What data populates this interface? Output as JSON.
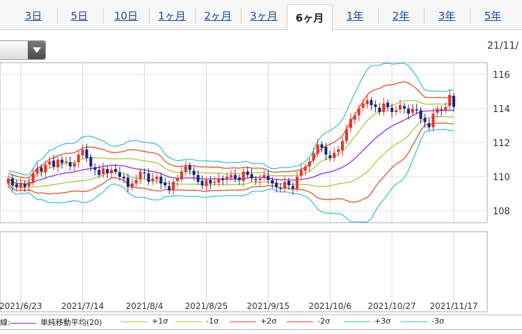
{
  "tabs": [
    {
      "label": "3日",
      "active": false
    },
    {
      "label": "5日",
      "active": false
    },
    {
      "label": "10日",
      "active": false
    },
    {
      "label": "1ヶ月",
      "active": false
    },
    {
      "label": "2ヶ月",
      "active": false
    },
    {
      "label": "3ヶ月",
      "active": false
    },
    {
      "label": "6ヶ月",
      "active": true
    },
    {
      "label": "1年",
      "active": false
    },
    {
      "label": "2年",
      "active": false
    },
    {
      "label": "3年",
      "active": false
    },
    {
      "label": "5年",
      "active": false
    }
  ],
  "header": {
    "date": "21/11/"
  },
  "legend": {
    "prefix": "線:",
    "items": [
      {
        "label": "単純移動平均(20)",
        "color": "#8b2be2"
      },
      {
        "label": "+1σ",
        "color": "#a6c83a"
      },
      {
        "label": "-1σ",
        "color": "#a6c83a"
      },
      {
        "label": "+2σ",
        "color": "#e0502a"
      },
      {
        "label": "-2σ",
        "color": "#e0502a"
      },
      {
        "label": "+3σ",
        "color": "#3cc0d8"
      },
      {
        "label": "-3σ",
        "color": "#3cc0d8"
      }
    ]
  },
  "chart_data": {
    "type": "candlestick",
    "indicator": "Bollinger Bands (SMA 20, ±1σ, ±2σ, ±3σ)",
    "x_labels": [
      "2021/6/23",
      "2021/7/14",
      "2021/8/4",
      "2021/8/25",
      "2021/9/15",
      "2021/10/6",
      "2021/10/27",
      "2021/11/17"
    ],
    "ylim": [
      107.3,
      116.7
    ],
    "y_ticks": [
      108,
      110,
      112,
      114,
      116
    ],
    "grid": true,
    "colors": {
      "up": "#e8322b",
      "down": "#1a237e",
      "sma": "#8b2be2",
      "sigma1": "#a6c83a",
      "sigma2": "#e0502a",
      "sigma3": "#3cc0d8"
    },
    "closes": [
      109.9,
      109.5,
      109.4,
      109.6,
      109.4,
      109.7,
      110.2,
      110.5,
      110.3,
      110.7,
      110.9,
      110.6,
      111.0,
      110.8,
      110.9,
      110.6,
      110.8,
      111.3,
      111.6,
      111.1,
      110.6,
      110.4,
      110.1,
      110.5,
      110.2,
      110.4,
      110.3,
      110.0,
      109.9,
      109.4,
      109.6,
      109.8,
      110.3,
      110.2,
      109.7,
      109.9,
      110.0,
      109.6,
      109.5,
      109.2,
      109.7,
      109.9,
      110.3,
      110.6,
      110.4,
      110.1,
      109.7,
      109.5,
      109.8,
      109.6,
      109.7,
      109.9,
      109.8,
      110.0,
      110.1,
      109.9,
      109.8,
      110.3,
      110.1,
      109.9,
      109.8,
      109.9,
      110.1,
      109.8,
      109.6,
      109.4,
      109.3,
      109.7,
      109.5,
      109.3,
      110.0,
      110.4,
      110.6,
      110.9,
      111.4,
      111.9,
      111.7,
      111.3,
      111.1,
      111.4,
      111.6,
      112.1,
      112.8,
      113.4,
      113.6,
      114.0,
      114.3,
      114.5,
      114.2,
      114.1,
      113.8,
      114.3,
      114.1,
      113.8,
      113.9,
      114.2,
      114.0,
      113.7,
      114.0,
      113.9,
      113.4,
      113.2,
      112.9,
      113.7,
      114.0,
      113.9,
      114.1,
      114.8,
      114.1
    ]
  }
}
